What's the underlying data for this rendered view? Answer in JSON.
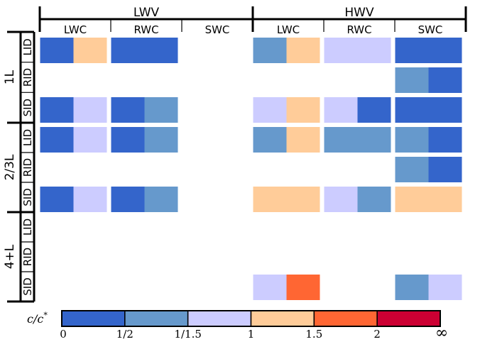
{
  "chart_data": {
    "type": "heatmap",
    "title": "",
    "column_groups": [
      {
        "label": "LWV",
        "subgroups": [
          "LWC",
          "RWC",
          "SWC"
        ]
      },
      {
        "label": "HWV",
        "subgroups": [
          "LWC",
          "RWC",
          "SWC"
        ]
      }
    ],
    "row_groups": [
      {
        "label": "1L",
        "subrows": [
          "LID",
          "RID",
          "SID"
        ]
      },
      {
        "label": "2/3L",
        "subrows": [
          "LID",
          "RID",
          "SID"
        ]
      },
      {
        "label": "4+L",
        "subrows": [
          "LID",
          "RID",
          "SID"
        ]
      }
    ],
    "cell_bins": [
      [
        [
          0,
          3
        ],
        [
          0,
          0
        ],
        null,
        [
          1,
          3
        ],
        [
          2,
          2
        ],
        [
          0,
          0
        ]
      ],
      [
        null,
        null,
        null,
        null,
        null,
        [
          1,
          0
        ]
      ],
      [
        [
          0,
          2
        ],
        [
          0,
          1
        ],
        null,
        [
          2,
          3
        ],
        [
          2,
          0
        ],
        [
          0,
          0
        ]
      ],
      [
        [
          0,
          2
        ],
        [
          0,
          1
        ],
        null,
        [
          1,
          3
        ],
        [
          1,
          1
        ],
        [
          1,
          0
        ]
      ],
      [
        null,
        null,
        null,
        null,
        null,
        [
          1,
          0
        ]
      ],
      [
        [
          0,
          2
        ],
        [
          0,
          1
        ],
        null,
        [
          3,
          3
        ],
        [
          2,
          1
        ],
        [
          3,
          3
        ]
      ],
      [
        null,
        null,
        null,
        null,
        null,
        null
      ],
      [
        null,
        null,
        null,
        null,
        null,
        null
      ],
      [
        null,
        null,
        null,
        [
          2,
          4
        ],
        null,
        [
          1,
          2
        ]
      ]
    ],
    "colorbar": {
      "label": "c/c*",
      "label_main": "c/c",
      "label_sup": "*",
      "tick_labels": [
        "0",
        "1/2",
        "1/1.5",
        "1",
        "1.5",
        "2",
        "∞"
      ],
      "bins": [
        {
          "from": "0",
          "to": "1/2",
          "color": "#3465CB"
        },
        {
          "from": "1/2",
          "to": "1/1.5",
          "color": "#6699CC"
        },
        {
          "from": "1/1.5",
          "to": "1",
          "color": "#CCCCFF"
        },
        {
          "from": "1",
          "to": "1.5",
          "color": "#FFCC99"
        },
        {
          "from": "1.5",
          "to": "2",
          "color": "#FF6633"
        },
        {
          "from": "2",
          "to": "∞",
          "color": "#CC0033"
        }
      ]
    }
  }
}
